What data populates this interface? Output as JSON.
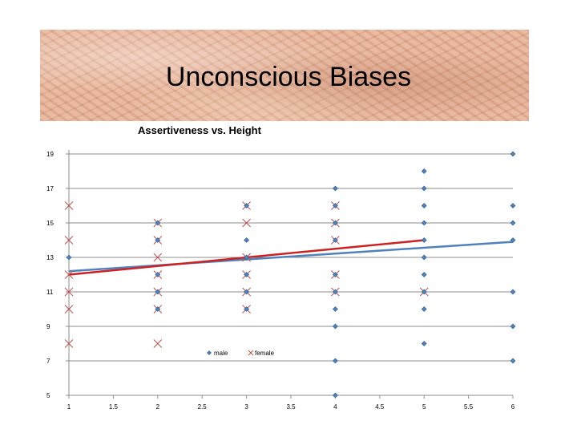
{
  "slide": {
    "title": "Unconscious Biases"
  },
  "chart_data": {
    "type": "scatter",
    "title": "Assertiveness vs. Height",
    "xlabel": "",
    "ylabel": "",
    "xlim": [
      1,
      6
    ],
    "ylim": [
      5,
      19
    ],
    "xticks": [
      "1",
      "1.5",
      "2",
      "2.5",
      "3",
      "3.5",
      "4",
      "4.5",
      "5",
      "5.5",
      "6"
    ],
    "yticks": [
      "5",
      "7",
      "9",
      "11",
      "13",
      "15",
      "17",
      "19"
    ],
    "grid": "horizontal",
    "legend_placement": "bottom-center",
    "series": [
      {
        "name": "male",
        "marker": "diamond",
        "color": "#4f81bd",
        "points": [
          [
            1,
            13
          ],
          [
            2,
            15
          ],
          [
            2,
            14
          ],
          [
            2,
            12
          ],
          [
            2,
            11
          ],
          [
            2,
            10
          ],
          [
            3,
            16
          ],
          [
            3,
            14
          ],
          [
            3,
            13
          ],
          [
            3,
            12
          ],
          [
            3,
            11
          ],
          [
            3,
            10
          ],
          [
            4,
            17
          ],
          [
            4,
            16
          ],
          [
            4,
            15
          ],
          [
            4,
            14
          ],
          [
            4,
            12
          ],
          [
            4,
            11
          ],
          [
            4,
            10
          ],
          [
            4,
            9
          ],
          [
            4,
            7
          ],
          [
            4,
            5
          ],
          [
            5,
            18
          ],
          [
            5,
            17
          ],
          [
            5,
            16
          ],
          [
            5,
            15
          ],
          [
            5,
            14
          ],
          [
            5,
            13
          ],
          [
            5,
            12
          ],
          [
            5,
            11
          ],
          [
            5,
            10
          ],
          [
            5,
            8
          ],
          [
            6,
            19
          ],
          [
            6,
            16
          ],
          [
            6,
            15
          ],
          [
            6,
            14
          ],
          [
            6,
            11
          ],
          [
            6,
            9
          ],
          [
            6,
            7
          ]
        ]
      },
      {
        "name": "female",
        "marker": "x",
        "color": "#c0504d",
        "points": [
          [
            1,
            16
          ],
          [
            1,
            14
          ],
          [
            1,
            12
          ],
          [
            1,
            11
          ],
          [
            1,
            10
          ],
          [
            1,
            8
          ],
          [
            2,
            15
          ],
          [
            2,
            14
          ],
          [
            2,
            13
          ],
          [
            2,
            12
          ],
          [
            2,
            11
          ],
          [
            2,
            10
          ],
          [
            2,
            8
          ],
          [
            3,
            16
          ],
          [
            3,
            15
          ],
          [
            3,
            13
          ],
          [
            3,
            12
          ],
          [
            3,
            11
          ],
          [
            3,
            10
          ],
          [
            4,
            16
          ],
          [
            4,
            15
          ],
          [
            4,
            14
          ],
          [
            4,
            12
          ],
          [
            4,
            11
          ],
          [
            5,
            11
          ]
        ]
      }
    ],
    "trendlines": [
      {
        "series": "male",
        "color": "#4f81bd",
        "from": [
          1,
          12.2
        ],
        "to": [
          6,
          13.9
        ]
      },
      {
        "series": "female",
        "color": "#cc2222",
        "from": [
          1,
          12.0
        ],
        "to": [
          5,
          14.0
        ]
      }
    ]
  }
}
